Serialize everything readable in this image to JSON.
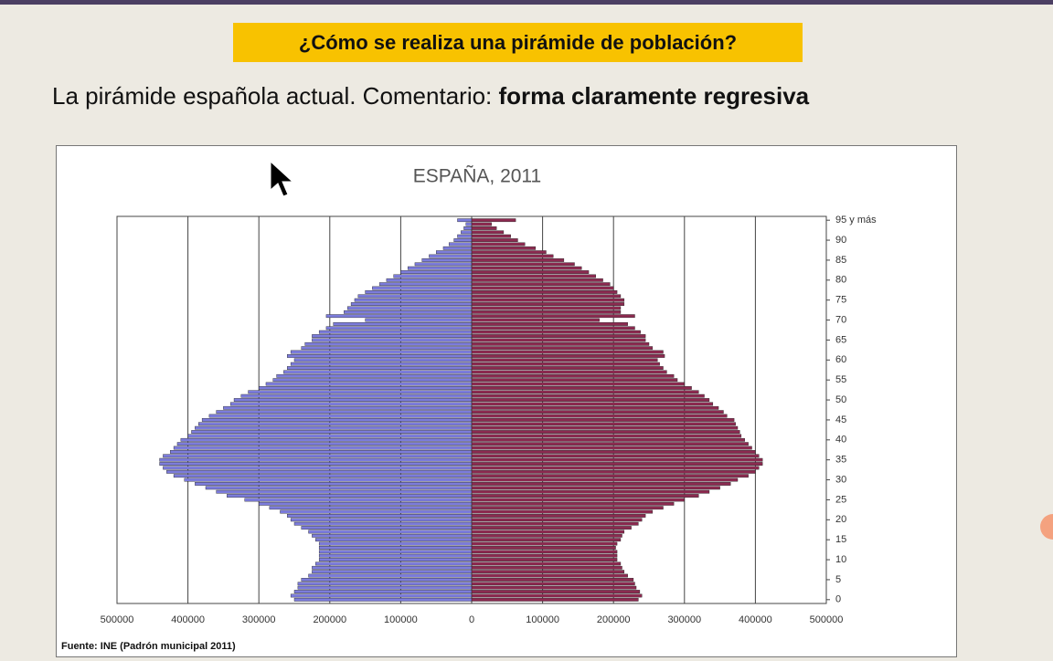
{
  "header": {
    "title": "¿Cómo se realiza una pirámide de población?",
    "subtitle": "La pirámide española actual. Comentario: ",
    "subtitle_emphasis": "forma claramente regresiva"
  },
  "chart_data": {
    "type": "pyramid",
    "title": "ESPAÑA, 2011",
    "source": "Fuente: INE (Padrón municipal 2011)",
    "categories": [
      "0",
      null,
      null,
      null,
      null,
      "5",
      null,
      null,
      null,
      null,
      "10",
      null,
      null,
      null,
      null,
      "15",
      null,
      null,
      null,
      null,
      "20",
      null,
      null,
      null,
      null,
      "25",
      null,
      null,
      null,
      null,
      "30",
      null,
      null,
      null,
      null,
      "35",
      null,
      null,
      null,
      null,
      "40",
      null,
      null,
      null,
      null,
      "45",
      null,
      null,
      null,
      null,
      "50",
      null,
      null,
      null,
      null,
      "55",
      null,
      null,
      null,
      null,
      "60",
      null,
      null,
      null,
      null,
      "65",
      null,
      null,
      null,
      null,
      "70",
      null,
      null,
      null,
      null,
      "75",
      null,
      null,
      null,
      null,
      "80",
      null,
      null,
      null,
      null,
      "85",
      null,
      null,
      null,
      null,
      "90",
      null,
      null,
      null,
      null,
      "95 y más"
    ],
    "series": [
      {
        "side": "left",
        "color": "#7c7cdc",
        "values": [
          250000,
          255000,
          250000,
          245000,
          245000,
          240000,
          230000,
          225000,
          225000,
          220000,
          215000,
          215000,
          215000,
          215000,
          215000,
          220000,
          225000,
          230000,
          240000,
          250000,
          255000,
          260000,
          270000,
          285000,
          300000,
          320000,
          345000,
          360000,
          375000,
          390000,
          405000,
          420000,
          430000,
          435000,
          440000,
          440000,
          435000,
          425000,
          420000,
          415000,
          410000,
          400000,
          395000,
          390000,
          385000,
          380000,
          370000,
          360000,
          350000,
          340000,
          335000,
          325000,
          315000,
          300000,
          290000,
          280000,
          275000,
          265000,
          260000,
          255000,
          250000,
          260000,
          255000,
          240000,
          235000,
          225000,
          225000,
          215000,
          205000,
          195000,
          150000,
          205000,
          180000,
          175000,
          170000,
          165000,
          160000,
          150000,
          140000,
          130000,
          120000,
          110000,
          100000,
          90000,
          80000,
          70000,
          60000,
          50000,
          40000,
          32000,
          25000,
          20000,
          15000,
          11000,
          8000,
          20000
        ]
      },
      {
        "side": "right",
        "color": "#8c2a50",
        "values": [
          235000,
          240000,
          237000,
          232000,
          230000,
          228000,
          220000,
          215000,
          212000,
          210000,
          205000,
          205000,
          205000,
          203000,
          205000,
          210000,
          212000,
          215000,
          225000,
          235000,
          240000,
          245000,
          255000,
          270000,
          285000,
          300000,
          320000,
          335000,
          350000,
          365000,
          375000,
          390000,
          400000,
          405000,
          410000,
          410000,
          405000,
          400000,
          395000,
          390000,
          385000,
          380000,
          378000,
          375000,
          372000,
          370000,
          360000,
          355000,
          348000,
          340000,
          335000,
          328000,
          320000,
          310000,
          300000,
          290000,
          285000,
          275000,
          270000,
          265000,
          262000,
          272000,
          270000,
          255000,
          250000,
          245000,
          245000,
          238000,
          230000,
          220000,
          180000,
          230000,
          210000,
          210000,
          215000,
          215000,
          210000,
          205000,
          200000,
          195000,
          185000,
          175000,
          165000,
          155000,
          145000,
          130000,
          115000,
          105000,
          90000,
          75000,
          65000,
          55000,
          45000,
          35000,
          28000,
          62000
        ]
      }
    ],
    "xlim": [
      -500000,
      500000
    ],
    "xticks": [
      {
        "value": -500000,
        "label": "500000"
      },
      {
        "value": -400000,
        "label": "400000"
      },
      {
        "value": -300000,
        "label": "300000"
      },
      {
        "value": -200000,
        "label": "200000"
      },
      {
        "value": -100000,
        "label": "100000"
      },
      0,
      100000,
      200000,
      300000,
      400000,
      500000
    ],
    "grid": true
  }
}
